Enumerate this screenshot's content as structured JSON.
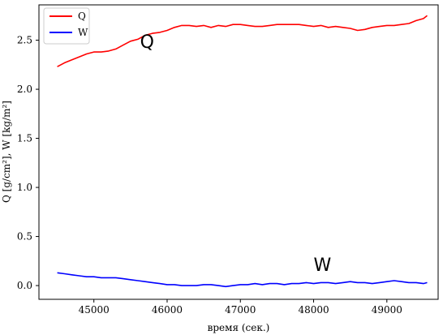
{
  "chart_data": {
    "type": "line",
    "title": "",
    "xlabel": "время (сек.)",
    "ylabel": "Q [g/cm²], W [kg/m²]",
    "xlim": [
      44250,
      49700
    ],
    "ylim": [
      -0.14,
      2.86
    ],
    "xticks": [
      45000,
      46000,
      47000,
      48000,
      49000
    ],
    "yticks": [
      0.0,
      0.5,
      1.0,
      1.5,
      2.0,
      2.5
    ],
    "xtick_labels": [
      "45000",
      "46000",
      "47000",
      "48000",
      "49000"
    ],
    "ytick_labels": [
      "0.0",
      "0.5",
      "1.0",
      "1.5",
      "2.0",
      "2.5"
    ],
    "grid": false,
    "legend": "top-left",
    "series": [
      {
        "name": "Q",
        "color": "#ff0000",
        "x": [
          44500,
          44600,
          44700,
          44800,
          44900,
          45000,
          45100,
          45200,
          45300,
          45400,
          45500,
          45600,
          45700,
          45800,
          45900,
          46000,
          46100,
          46200,
          46300,
          46400,
          46500,
          46600,
          46700,
          46800,
          46900,
          47000,
          47100,
          47200,
          47300,
          47400,
          47500,
          47600,
          47700,
          47800,
          47900,
          48000,
          48100,
          48200,
          48300,
          48400,
          48500,
          48600,
          48700,
          48800,
          48900,
          49000,
          49100,
          49200,
          49300,
          49400,
          49500,
          49550
        ],
        "values": [
          2.23,
          2.27,
          2.3,
          2.33,
          2.36,
          2.38,
          2.38,
          2.39,
          2.41,
          2.45,
          2.49,
          2.51,
          2.55,
          2.57,
          2.58,
          2.6,
          2.63,
          2.65,
          2.65,
          2.64,
          2.65,
          2.63,
          2.65,
          2.64,
          2.66,
          2.66,
          2.65,
          2.64,
          2.64,
          2.65,
          2.66,
          2.66,
          2.66,
          2.66,
          2.65,
          2.64,
          2.65,
          2.63,
          2.64,
          2.63,
          2.62,
          2.6,
          2.61,
          2.63,
          2.64,
          2.65,
          2.65,
          2.66,
          2.67,
          2.7,
          2.72,
          2.75
        ]
      },
      {
        "name": "W",
        "color": "#0000ff",
        "x": [
          44500,
          44600,
          44700,
          44800,
          44900,
          45000,
          45100,
          45200,
          45300,
          45400,
          45500,
          45600,
          45700,
          45800,
          45900,
          46000,
          46100,
          46200,
          46300,
          46400,
          46500,
          46600,
          46700,
          46800,
          46900,
          47000,
          47100,
          47200,
          47300,
          47400,
          47500,
          47600,
          47700,
          47800,
          47900,
          48000,
          48100,
          48200,
          48300,
          48400,
          48500,
          48600,
          48700,
          48800,
          48900,
          49000,
          49100,
          49200,
          49300,
          49400,
          49500,
          49550
        ],
        "values": [
          0.13,
          0.12,
          0.11,
          0.1,
          0.09,
          0.09,
          0.08,
          0.08,
          0.08,
          0.07,
          0.06,
          0.05,
          0.04,
          0.03,
          0.02,
          0.01,
          0.01,
          0.0,
          0.0,
          0.0,
          0.01,
          0.01,
          0.0,
          -0.01,
          0.0,
          0.01,
          0.01,
          0.02,
          0.01,
          0.02,
          0.02,
          0.01,
          0.02,
          0.02,
          0.03,
          0.02,
          0.03,
          0.03,
          0.02,
          0.03,
          0.04,
          0.03,
          0.03,
          0.02,
          0.03,
          0.04,
          0.05,
          0.04,
          0.03,
          0.03,
          0.02,
          0.03
        ]
      }
    ],
    "annotations": [
      {
        "text": "Q",
        "x": 45630,
        "y": 2.42
      },
      {
        "text": "W",
        "x": 48000,
        "y": 0.15
      }
    ]
  }
}
